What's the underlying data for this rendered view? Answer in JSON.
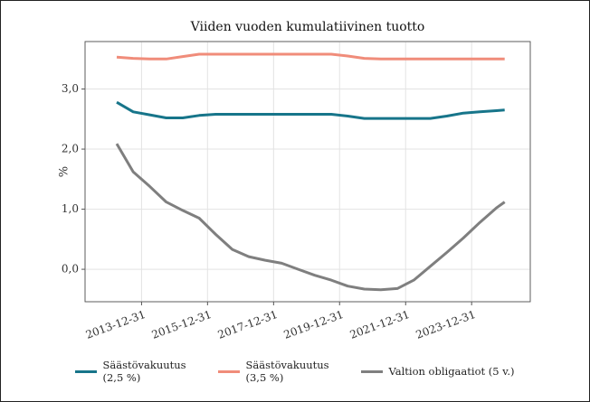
{
  "chart_data": {
    "type": "line",
    "title": "Viiden vuoden kumulatiivinen tuotto",
    "y_label": "%",
    "x": [
      "2013-03-31",
      "2013-09-30",
      "2014-03-31",
      "2014-09-30",
      "2015-03-31",
      "2015-09-30",
      "2016-03-31",
      "2016-09-30",
      "2017-03-31",
      "2017-09-30",
      "2018-03-31",
      "2018-09-30",
      "2019-03-31",
      "2019-09-30",
      "2020-03-31",
      "2020-09-30",
      "2021-03-31",
      "2021-09-30",
      "2022-03-31",
      "2022-09-30",
      "2023-03-31",
      "2023-09-30",
      "2024-03-31",
      "2024-09-30",
      "2024-12-31"
    ],
    "series": [
      {
        "name": "Säästövakuutus (2,5 %)",
        "color": "#17758a",
        "values": [
          2.78,
          2.62,
          2.57,
          2.52,
          2.52,
          2.56,
          2.58,
          2.58,
          2.58,
          2.58,
          2.58,
          2.58,
          2.58,
          2.58,
          2.55,
          2.51,
          2.51,
          2.51,
          2.51,
          2.51,
          2.55,
          2.6,
          2.62,
          2.64,
          2.65
        ]
      },
      {
        "name": "Säästövakuutus (3,5 %)",
        "color": "#f08c7a",
        "values": [
          3.53,
          3.51,
          3.5,
          3.5,
          3.54,
          3.58,
          3.58,
          3.58,
          3.58,
          3.58,
          3.58,
          3.58,
          3.58,
          3.58,
          3.55,
          3.51,
          3.5,
          3.5,
          3.5,
          3.5,
          3.5,
          3.5,
          3.5,
          3.5,
          3.5
        ]
      },
      {
        "name": "Valtion obligaatiot (5 v.)",
        "color": "#7f7f7f",
        "values": [
          2.09,
          1.62,
          1.38,
          1.12,
          0.98,
          0.85,
          0.58,
          0.33,
          0.21,
          0.15,
          0.1,
          0.0,
          -0.1,
          -0.18,
          -0.28,
          -0.33,
          -0.34,
          -0.32,
          -0.18,
          0.05,
          0.28,
          0.52,
          0.78,
          1.02,
          1.12
        ]
      }
    ],
    "xlim": [
      "2012-04-15",
      "2025-10-10"
    ],
    "xticks": [
      "2013-12-31",
      "2015-12-31",
      "2017-12-31",
      "2019-12-31",
      "2021-12-31",
      "2023-12-31"
    ],
    "ylim": [
      -0.54,
      3.79
    ],
    "yticks": [
      {
        "value": 0,
        "label": "0,0"
      },
      {
        "value": 1,
        "label": "1,0"
      },
      {
        "value": 2,
        "label": "2,0"
      },
      {
        "value": 3,
        "label": "3,0"
      }
    ],
    "grid": true,
    "legend": "bottom"
  }
}
